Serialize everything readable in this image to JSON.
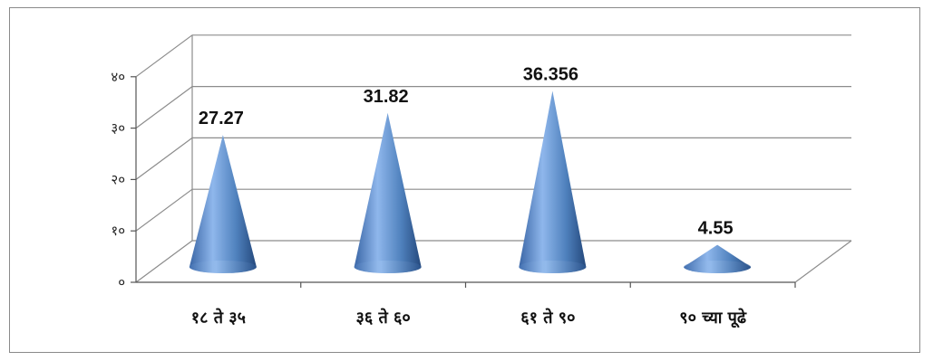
{
  "chart_data": {
    "type": "bar",
    "bar_shape": "cone-3d",
    "categories": [
      "१८ ते ३५",
      "३६ ते ६०",
      "६१ ते ९०",
      "९० च्या पूढे"
    ],
    "values": [
      27.27,
      31.82,
      36.356,
      4.55
    ],
    "data_labels": [
      "27.27",
      "31.82",
      "36.356",
      "4.55"
    ],
    "y_ticks": [
      {
        "value": 0,
        "label": "०"
      },
      {
        "value": 10,
        "label": "१०"
      },
      {
        "value": 20,
        "label": "२०"
      },
      {
        "value": 30,
        "label": "३०"
      },
      {
        "value": 40,
        "label": "४०"
      }
    ],
    "ylim": [
      0,
      40
    ],
    "grid": true,
    "legend": "none",
    "title": "",
    "xlabel": "",
    "ylabel": "",
    "colors": {
      "cone_light": "#8fb7ec",
      "cone_mid": "#4f81bd",
      "cone_dark": "#24487c",
      "grid": "#8c8c8c"
    }
  }
}
